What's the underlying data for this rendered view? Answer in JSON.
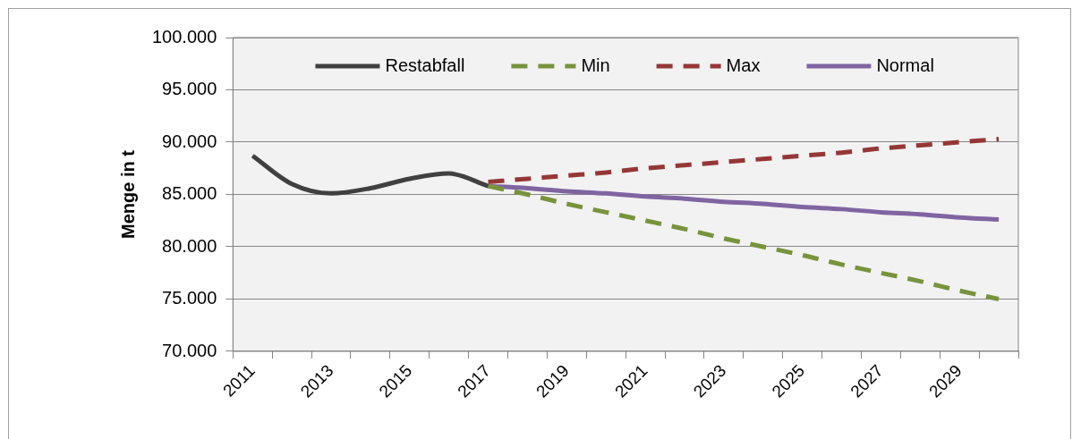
{
  "chart_data": {
    "type": "line",
    "ylabel": "Menge in t",
    "categories": [
      "2011",
      null,
      "2013",
      null,
      "2015",
      null,
      "2017",
      null,
      "2019",
      null,
      "2021",
      null,
      "2023",
      null,
      "2025",
      null,
      "2027",
      null,
      "2029",
      null
    ],
    "series": [
      {
        "name": "Restabfall",
        "color": "#404040",
        "values": [
          88700,
          86000,
          85100,
          85600,
          86500,
          87000,
          85800,
          null,
          null,
          null,
          null,
          null,
          null,
          null,
          null,
          null,
          null,
          null,
          null,
          null
        ]
      },
      {
        "name": "Min",
        "color": "#77933c",
        "line_style": "dashed",
        "values": [
          null,
          null,
          null,
          null,
          null,
          null,
          85800,
          85000,
          84100,
          83300,
          82500,
          81700,
          80800,
          80000,
          79200,
          78300,
          77500,
          76700,
          75800,
          75000
        ]
      },
      {
        "name": "Max",
        "color": "#953735",
        "line_style": "dashed",
        "values": [
          null,
          null,
          null,
          null,
          null,
          null,
          86200,
          86500,
          86800,
          87100,
          87500,
          87800,
          88100,
          88400,
          88700,
          89000,
          89400,
          89700,
          90000,
          90300
        ]
      },
      {
        "name": "Normal",
        "color": "#8064a2",
        "line_style": "solid",
        "values": [
          null,
          null,
          null,
          null,
          null,
          null,
          85800,
          85600,
          85300,
          85100,
          84800,
          84600,
          84300,
          84100,
          83800,
          83600,
          83300,
          83100,
          82800,
          82600
        ]
      }
    ],
    "ylim": [
      70000,
      100000
    ],
    "yticks": [
      {
        "value": 70000,
        "label": "70.000"
      },
      {
        "value": 75000,
        "label": "75.000"
      },
      {
        "value": 80000,
        "label": "80.000"
      },
      {
        "value": 85000,
        "label": "85.000"
      },
      {
        "value": 90000,
        "label": "90.000"
      },
      {
        "value": 95000,
        "label": "95.000"
      },
      {
        "value": 100000,
        "label": "100.000"
      }
    ],
    "grid": "y",
    "legend": "top",
    "marker": "none"
  }
}
